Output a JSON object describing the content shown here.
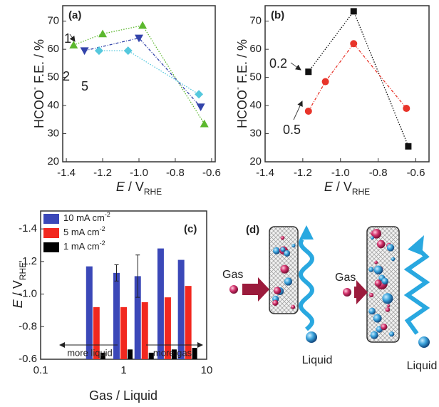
{
  "chart_data": [
    {
      "type": "line",
      "panel_label": "(a)",
      "x_label": [
        "E",
        " / V",
        "RHE"
      ],
      "y_label": [
        "HCOO",
        "-",
        " F.E. / %"
      ],
      "xlim": [
        -1.42,
        -0.58
      ],
      "ylim": [
        20,
        75.5
      ],
      "xticks": [
        -1.4,
        -1.2,
        {
          "value": -1,
          "label": "-1.0"
        },
        -0.8,
        -0.6
      ],
      "yticks": [
        20,
        30,
        40,
        50,
        60,
        70
      ],
      "series": [
        {
          "name": "1",
          "color": "#5cb82e",
          "marker": "triangle-up",
          "x": [
            -1.36,
            -1.2,
            -0.98,
            -0.64
          ],
          "values": [
            61.5,
            65.5,
            68.5,
            33.5
          ]
        },
        {
          "name": "2",
          "color": "#3344aa",
          "marker": "triangle-down",
          "x": [
            -1.3,
            -1.0,
            -0.66
          ],
          "values": [
            59.5,
            64,
            39.5
          ]
        },
        {
          "name": "5",
          "color": "#55c8dd",
          "marker": "diamond",
          "x": [
            -1.22,
            -1.06,
            -0.67
          ],
          "values": [
            59.5,
            59.5,
            44
          ]
        }
      ]
    },
    {
      "type": "line",
      "panel_label": "(b)",
      "x_label": [
        "E",
        " / V",
        "RHE"
      ],
      "y_label": [
        "HCOO",
        "-",
        " F.E. / %"
      ],
      "xlim": [
        -1.4,
        -0.53
      ],
      "ylim": [
        20,
        75.5
      ],
      "xticks": [
        -1.4,
        -1.2,
        {
          "value": -1,
          "label": "-1.0"
        },
        -0.8,
        -0.6
      ],
      "yticks": [
        20,
        30,
        40,
        50,
        60,
        70
      ],
      "series": [
        {
          "name": "0.2",
          "color": "#111111",
          "marker": "square",
          "x": [
            -1.17,
            -0.93,
            -0.64
          ],
          "values": [
            52,
            73.5,
            25.5
          ]
        },
        {
          "name": "0.5",
          "color": "#e8342a",
          "marker": "circle",
          "x": [
            -1.17,
            -1.08,
            -0.93,
            -0.65
          ],
          "values": [
            38,
            48.5,
            62,
            39
          ]
        }
      ]
    },
    {
      "type": "bar",
      "panel_label": "(c)",
      "x_label": "Gas / Liquid",
      "y_label": [
        "E",
        " / V",
        "RHE"
      ],
      "xscale": "log",
      "xlim": [
        0.1,
        10
      ],
      "xticks": [
        0.1,
        1,
        10
      ],
      "ylim": [
        -0.6,
        -1.51
      ],
      "yticks": [
        -1.4,
        -1.2,
        {
          "value": -1,
          "label": "-1.0"
        },
        -0.8,
        -0.6
      ],
      "x": [
        0.47,
        1.0,
        1.8,
        3.4,
        6
      ],
      "legend": "upper left",
      "series": [
        {
          "name": "10 mA cm-2",
          "color": "#3b48b8",
          "values": [
            -1.17,
            -1.13,
            -1.11,
            -1.28,
            -1.21
          ],
          "errors": [
            null,
            0.05,
            0.13,
            null,
            null
          ]
        },
        {
          "name": "5 mA cm-2",
          "color": "#f2281f",
          "values": [
            -0.92,
            -0.92,
            -0.95,
            -0.98,
            -1.05
          ]
        },
        {
          "name": "1 mA cm-2",
          "color": "#000000",
          "values": [
            -0.64,
            -0.66,
            -0.64,
            -0.66,
            -0.67
          ]
        }
      ],
      "annotations": [
        "more liquid",
        "more gas"
      ]
    }
  ],
  "diagram": {
    "label": "(d)",
    "left": {
      "gas": "Gas",
      "liquid": "Liquid"
    },
    "right": {
      "gas": "Gas",
      "liquid": "Liquid"
    }
  }
}
